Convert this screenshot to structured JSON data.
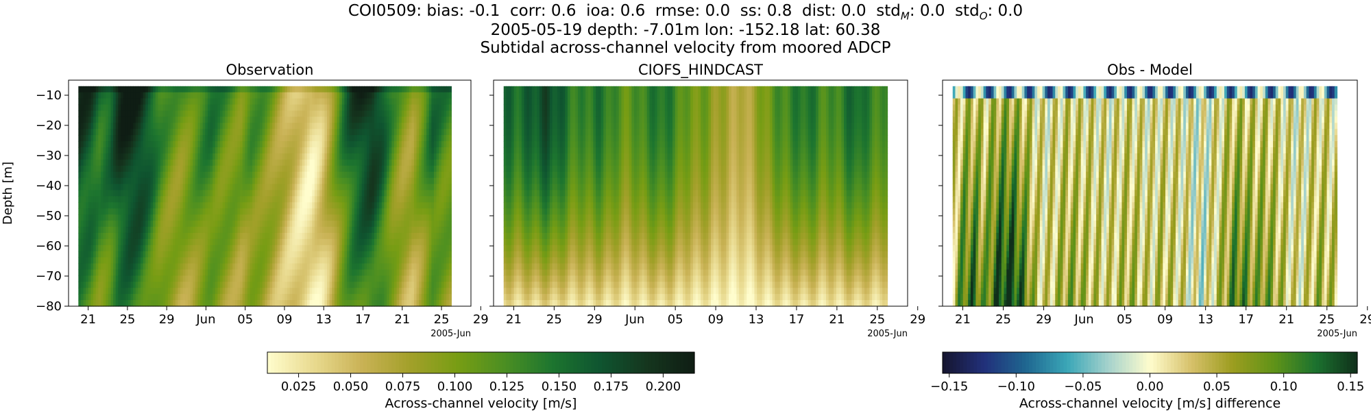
{
  "figure": {
    "title_stats": "COI0509: bias: -0.1  corr: 0.6  ioa: 0.6  rmse: 0.0  ss: 0.8  dist: 0.0  std",
    "title_stats_subM": "M",
    "title_stats_mid": ": 0.0  std",
    "title_stats_subO": "O",
    "title_stats_end": ": 0.0",
    "title_line2": "2005-05-19 depth: -7.01m lon: -152.18 lat: 60.38",
    "title_line3": "Subtidal across-channel velocity from moored ADCP"
  },
  "chart_data": [
    {
      "type": "heatmap",
      "title": "Observation",
      "ylabel": "Depth [m]",
      "xlabel": "",
      "x_range": [
        "2005-05-20",
        "2005-06-27"
      ],
      "xlim": [
        "2005-05-19",
        "2005-06-29"
      ],
      "ylim": [
        -80,
        -5
      ],
      "x_ticks": [
        "21",
        "25",
        "29",
        "Jun",
        "05",
        "09",
        "13",
        "17",
        "21",
        "25",
        "29"
      ],
      "x_offset_label": "2005-Jun",
      "y_ticks": [
        "-10",
        "-20",
        "-30",
        "-40",
        "-50",
        "-60",
        "-70",
        "-80"
      ],
      "colormap": "speed",
      "color_range": [
        0.01,
        0.215
      ],
      "time_profile": [
        0.2,
        0.19,
        0.16,
        0.17,
        0.21,
        0.22,
        0.21,
        0.18,
        0.14,
        0.12,
        0.11,
        0.12,
        0.14,
        0.15,
        0.13,
        0.12,
        0.11,
        0.13,
        0.12,
        0.1,
        0.08,
        0.06,
        0.04,
        0.03,
        0.05,
        0.09,
        0.14,
        0.18,
        0.2,
        0.21,
        0.18,
        0.13,
        0.1,
        0.09,
        0.12,
        0.16,
        0.14,
        0.13
      ]
    },
    {
      "type": "heatmap",
      "title": "CIOFS_HINDCAST",
      "xlabel": "",
      "x_range": [
        "2005-05-20",
        "2005-06-27"
      ],
      "xlim": [
        "2005-05-19",
        "2005-06-29"
      ],
      "ylim": [
        -80,
        -5
      ],
      "x_ticks": [
        "21",
        "25",
        "29",
        "Jun",
        "05",
        "09",
        "13",
        "17",
        "21",
        "25",
        "29"
      ],
      "x_offset_label": "2005-Jun",
      "colormap": "speed",
      "color_range": [
        0.01,
        0.215
      ],
      "time_profile": [
        0.16,
        0.15,
        0.16,
        0.17,
        0.18,
        0.17,
        0.15,
        0.13,
        0.14,
        0.15,
        0.14,
        0.12,
        0.11,
        0.13,
        0.14,
        0.15,
        0.14,
        0.12,
        0.1,
        0.11,
        0.09,
        0.08,
        0.07,
        0.06,
        0.08,
        0.1,
        0.12,
        0.13,
        0.14,
        0.15,
        0.14,
        0.12,
        0.13,
        0.15,
        0.16,
        0.14,
        0.13,
        0.12
      ]
    },
    {
      "type": "heatmap",
      "title": "Obs - Model",
      "xlabel": "",
      "x_range": [
        "2005-05-20",
        "2005-06-27"
      ],
      "xlim": [
        "2005-05-19",
        "2005-06-29"
      ],
      "ylim": [
        -80,
        -5
      ],
      "x_ticks": [
        "21",
        "25",
        "29",
        "Jun",
        "05",
        "09",
        "13",
        "17",
        "21",
        "25",
        "29"
      ],
      "x_offset_label": "2005-Jun",
      "colormap": "diff",
      "color_range": [
        -0.155,
        0.155
      ],
      "time_profile": [
        0.04,
        0.09,
        0.1,
        0.06,
        0.11,
        0.13,
        0.12,
        0.08,
        0.03,
        0.02,
        0.04,
        0.06,
        0.05,
        0.04,
        0.03,
        0.02,
        0.04,
        0.05,
        0.03,
        0.02,
        0.04,
        0.03,
        0.02,
        0.0,
        -0.01,
        0.02,
        0.05,
        0.09,
        0.08,
        0.06,
        0.07,
        0.05,
        0.03,
        0.01,
        0.02,
        0.05,
        0.04,
        0.03
      ]
    }
  ],
  "colorbars": [
    {
      "label": "Across-channel velocity [m/s]",
      "range": [
        0.01,
        0.215
      ],
      "ticks": [
        0.025,
        0.05,
        0.075,
        0.1,
        0.125,
        0.15,
        0.175,
        0.2
      ],
      "tick_labels": [
        "0.025",
        "0.050",
        "0.075",
        "0.100",
        "0.125",
        "0.150",
        "0.175",
        "0.200"
      ]
    },
    {
      "label": "Across-channel velocity [m/s] difference",
      "range": [
        -0.155,
        0.155
      ],
      "ticks": [
        -0.15,
        -0.1,
        -0.05,
        0.0,
        0.05,
        0.1,
        0.15
      ],
      "tick_labels": [
        "−0.15",
        "−0.10",
        "−0.05",
        "0.00",
        "0.05",
        "0.10",
        "0.15"
      ]
    }
  ],
  "colors": {
    "speed": [
      "#fffdcd",
      "#e8d98e",
      "#c9b255",
      "#a3a02a",
      "#789d14",
      "#4b8f22",
      "#1d752f",
      "#0f5530",
      "#15361e",
      "#0f1d14"
    ],
    "diff": [
      "#15152e",
      "#21307a",
      "#1f6690",
      "#3aa6b7",
      "#a5d2cc",
      "#fffdcd",
      "#d6c06a",
      "#9c9d1f",
      "#5f9318",
      "#1b722f",
      "#102f1a"
    ]
  }
}
